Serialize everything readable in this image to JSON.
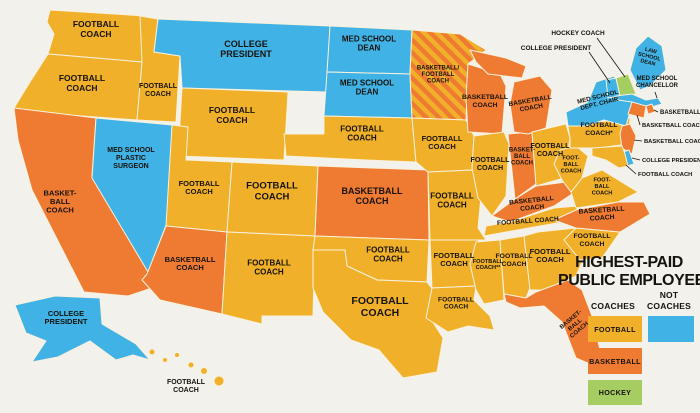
{
  "title": {
    "line1": "HIGHEST-PAID",
    "line2": "PUBLIC EMPLOYEE"
  },
  "legend": {
    "coaches_header": "COACHES",
    "not_header_line1": "NOT",
    "not_header_line2": "COACHES",
    "football_label": "FOOTBALL",
    "basketball_label": "BASKETBALL",
    "hockey_label": "HOCKEY"
  },
  "colors": {
    "football": "#F0B02A",
    "basketball": "#EF7B33",
    "hockey": "#A5CD62",
    "not_coach": "#41B2E5",
    "background": "#F2F1EC",
    "state_border": "#F8F1DC",
    "text": "#16130D"
  },
  "states": [
    {
      "id": "WA",
      "name": "Washington",
      "category": "football",
      "label": [
        "FOOTBALL",
        "COACH"
      ]
    },
    {
      "id": "OR",
      "name": "Oregon",
      "category": "football",
      "label": [
        "FOOTBALL",
        "COACH"
      ]
    },
    {
      "id": "CA",
      "name": "California",
      "category": "basketball",
      "label": [
        "BASKET-",
        "BALL",
        "COACH"
      ]
    },
    {
      "id": "NV",
      "name": "Nevada",
      "category": "not_coach",
      "label": [
        "MED SCHOOL",
        "PLASTIC",
        "SURGEON"
      ]
    },
    {
      "id": "ID",
      "name": "Idaho",
      "category": "football",
      "label": [
        "FOOTBALL",
        "COACH"
      ]
    },
    {
      "id": "MT",
      "name": "Montana",
      "category": "not_coach",
      "label": [
        "COLLEGE",
        "PRESIDENT"
      ]
    },
    {
      "id": "WY",
      "name": "Wyoming",
      "category": "football",
      "label": [
        "FOOTBALL",
        "COACH"
      ]
    },
    {
      "id": "UT",
      "name": "Utah",
      "category": "football",
      "label": [
        "FOOTBALL",
        "COACH"
      ]
    },
    {
      "id": "CO",
      "name": "Colorado",
      "category": "football",
      "label": [
        "FOOTBALL",
        "COACH"
      ]
    },
    {
      "id": "AZ",
      "name": "Arizona",
      "category": "basketball",
      "label": [
        "BASKETBALL",
        "COACH"
      ]
    },
    {
      "id": "NM",
      "name": "New Mexico",
      "category": "football",
      "label": [
        "FOOTBALL",
        "COACH"
      ]
    },
    {
      "id": "ND",
      "name": "North Dakota",
      "category": "not_coach",
      "label": [
        "MED SCHOOL",
        "DEAN"
      ]
    },
    {
      "id": "SD",
      "name": "South Dakota",
      "category": "not_coach",
      "label": [
        "MED SCHOOL",
        "DEAN"
      ]
    },
    {
      "id": "NE",
      "name": "Nebraska",
      "category": "football",
      "label": [
        "FOOTBALL",
        "COACH"
      ]
    },
    {
      "id": "KS",
      "name": "Kansas",
      "category": "basketball",
      "label": [
        "BASKETBALL",
        "COACH"
      ]
    },
    {
      "id": "OK",
      "name": "Oklahoma",
      "category": "football",
      "label": [
        "FOOTBALL",
        "COACH"
      ]
    },
    {
      "id": "TX",
      "name": "Texas",
      "category": "football",
      "label": [
        "FOOTBALL",
        "COACH"
      ]
    },
    {
      "id": "MN",
      "name": "Minnesota",
      "category": "mixed",
      "label": [
        "BASKETBALL/",
        "FOOTBALL",
        "COACH"
      ]
    },
    {
      "id": "IA",
      "name": "Iowa",
      "category": "football",
      "label": [
        "FOOTBALL",
        "COACH"
      ]
    },
    {
      "id": "MO",
      "name": "Missouri",
      "category": "football",
      "label": [
        "FOOTBALL",
        "COACH"
      ]
    },
    {
      "id": "WI",
      "name": "Wisconsin",
      "category": "basketball",
      "label": [
        "BASKETBALL",
        "COACH"
      ]
    },
    {
      "id": "IL",
      "name": "Illinois",
      "category": "football",
      "label": [
        "FOOTBALL",
        "COACH"
      ]
    },
    {
      "id": "IN",
      "name": "Indiana",
      "category": "basketball",
      "label": [
        "BASKET-",
        "BALL",
        "COACH"
      ]
    },
    {
      "id": "MI",
      "name": "Michigan",
      "category": "basketball",
      "label": [
        "BASKETBALL",
        "COACH"
      ]
    },
    {
      "id": "OH",
      "name": "Ohio",
      "category": "football",
      "label": [
        "FOOTBALL",
        "COACH"
      ]
    },
    {
      "id": "KY",
      "name": "Kentucky",
      "category": "basketball",
      "label": [
        "BASKETBALL",
        "COACH"
      ]
    },
    {
      "id": "TN",
      "name": "Tennessee",
      "category": "football",
      "label": [
        "FOOTBALL COACH"
      ]
    },
    {
      "id": "AR",
      "name": "Arkansas",
      "category": "football",
      "label": [
        "FOOTBALL",
        "COACH"
      ]
    },
    {
      "id": "LA",
      "name": "Louisiana",
      "category": "football",
      "label": [
        "FOOTBALL",
        "COACH"
      ]
    },
    {
      "id": "MS",
      "name": "Mississippi",
      "category": "football",
      "label": [
        "FOOTBALL",
        "COACH**"
      ]
    },
    {
      "id": "AL",
      "name": "Alabama",
      "category": "football",
      "label": [
        "FOOTBALL",
        "COACH"
      ]
    },
    {
      "id": "GA",
      "name": "Georgia",
      "category": "football",
      "label": [
        "FOOTBALL",
        "COACH"
      ]
    },
    {
      "id": "FL",
      "name": "Florida",
      "category": "basketball",
      "label": [
        "BASKET-",
        "BALL",
        "COACH"
      ]
    },
    {
      "id": "SC",
      "name": "South Carolina",
      "category": "football",
      "label": [
        "FOOTBALL",
        "COACH"
      ]
    },
    {
      "id": "NC",
      "name": "North Carolina",
      "category": "basketball",
      "label": [
        "BASKETBALL",
        "COACH"
      ]
    },
    {
      "id": "VA",
      "name": "Virginia",
      "category": "football",
      "label": [
        "FOOT-",
        "BALL",
        "COACH"
      ]
    },
    {
      "id": "WV",
      "name": "West Virginia",
      "category": "football",
      "label": [
        "FOOT-",
        "BALL",
        "COACH"
      ]
    },
    {
      "id": "PA",
      "name": "Pennsylvania",
      "category": "football",
      "label": [
        "FOOTBALL",
        "COACH*"
      ]
    },
    {
      "id": "NY",
      "name": "New York",
      "category": "not_coach",
      "label": [
        "MED SCHOOL",
        "DEPT. CHAIR"
      ]
    },
    {
      "id": "ME",
      "name": "Maine",
      "category": "not_coach",
      "label": [
        "LAW",
        "SCHOOL",
        "DEAN"
      ]
    },
    {
      "id": "VT",
      "name": "Vermont",
      "category": "not_coach",
      "label": []
    },
    {
      "id": "NH",
      "name": "New Hampshire",
      "category": "hockey",
      "label": []
    },
    {
      "id": "MA",
      "name": "Massachusetts",
      "category": "not_coach",
      "label": []
    },
    {
      "id": "RI",
      "name": "Rhode Island",
      "category": "basketball",
      "label": []
    },
    {
      "id": "CT",
      "name": "Connecticut",
      "category": "basketball",
      "label": []
    },
    {
      "id": "NJ",
      "name": "New Jersey",
      "category": "basketball",
      "label": []
    },
    {
      "id": "DE",
      "name": "Delaware",
      "category": "not_coach",
      "label": []
    },
    {
      "id": "MD",
      "name": "Maryland",
      "category": "football",
      "label": []
    },
    {
      "id": "AK",
      "name": "Alaska",
      "category": "not_coach",
      "label": [
        "COLLEGE",
        "PRESIDENT"
      ]
    },
    {
      "id": "HI",
      "name": "Hawaii",
      "category": "football",
      "label": [
        "FOOTBALL",
        "COACH"
      ]
    }
  ],
  "callouts": [
    {
      "id": "NH",
      "text": [
        "HOCKEY COACH"
      ]
    },
    {
      "id": "VT",
      "text": [
        "COLLEGE PRESIDENT"
      ]
    },
    {
      "id": "MA",
      "text": [
        "MED SCHOOL",
        "CHANCELLOR"
      ]
    },
    {
      "id": "RI",
      "text": [
        "BASKETBALL"
      ]
    },
    {
      "id": "CT",
      "text": [
        "BASKETBALL COACH"
      ]
    },
    {
      "id": "NJ",
      "text": [
        "BASKETBALL COACH"
      ]
    },
    {
      "id": "DE",
      "text": [
        "COLLEGE PRESIDENT"
      ]
    },
    {
      "id": "MD",
      "text": [
        "FOOTBALL COACH"
      ]
    }
  ]
}
